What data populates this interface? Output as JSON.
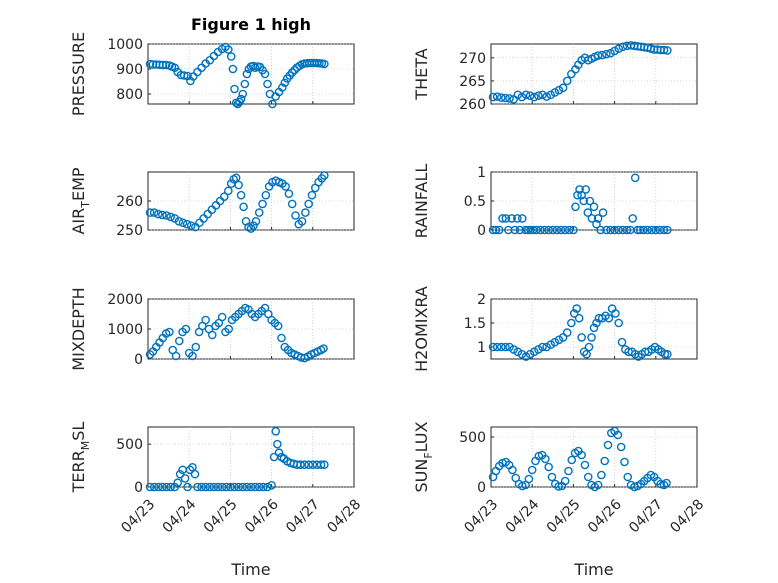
{
  "figure": {
    "title": "Figure 1 high",
    "xlabel": "Time"
  },
  "colors": {
    "marker": "#0072BD",
    "axis": "#262626",
    "grid": "#b8b8b8"
  },
  "chart_data": [
    {
      "type": "scatter",
      "ylabel": "PRESSURE",
      "ylim": [
        760,
        1000
      ],
      "yticks": [
        "800",
        "900",
        "1000"
      ],
      "xticks": [],
      "grid": true,
      "x": [
        0.05,
        0.12,
        0.2,
        0.28,
        0.36,
        0.44,
        0.52,
        0.58,
        0.65,
        0.72,
        0.8,
        0.88,
        0.96,
        1.03,
        1.1,
        1.2,
        1.3,
        1.4,
        1.5,
        1.6,
        1.7,
        1.8,
        1.88,
        1.95,
        2.02,
        2.06,
        2.1,
        2.14,
        2.18,
        2.22,
        2.26,
        2.3,
        2.35,
        2.4,
        2.45,
        2.5,
        2.55,
        2.6,
        2.66,
        2.72,
        2.78,
        2.84,
        2.9,
        2.96,
        3.02,
        3.1,
        3.18,
        3.26,
        3.32,
        3.38,
        3.44,
        3.5,
        3.56,
        3.62,
        3.68,
        3.74,
        3.8,
        3.86,
        3.92,
        3.98,
        4.04,
        4.1,
        4.16,
        4.22,
        4.28
      ],
      "y": [
        920,
        918,
        918,
        917,
        916,
        916,
        914,
        910,
        905,
        888,
        876,
        874,
        872,
        852,
        870,
        888,
        905,
        922,
        935,
        952,
        968,
        980,
        988,
        978,
        950,
        900,
        820,
        765,
        760,
        768,
        780,
        800,
        840,
        880,
        900,
        910,
        912,
        905,
        910,
        908,
        895,
        880,
        840,
        800,
        760,
        790,
        808,
        826,
        845,
        862,
        874,
        886,
        896,
        906,
        913,
        919,
        922,
        923,
        924,
        924,
        924,
        924,
        923,
        922,
        920
      ]
    },
    {
      "type": "scatter",
      "ylabel": "THETA",
      "ylim": [
        260,
        273
      ],
      "yticks": [
        "260",
        "265",
        "270"
      ],
      "xticks": [],
      "grid": true,
      "x": [
        0.05,
        0.15,
        0.25,
        0.35,
        0.45,
        0.55,
        0.65,
        0.75,
        0.85,
        0.95,
        1.05,
        1.15,
        1.25,
        1.35,
        1.45,
        1.55,
        1.65,
        1.75,
        1.85,
        1.95,
        2.05,
        2.12,
        2.2,
        2.28,
        2.36,
        2.44,
        2.52,
        2.6,
        2.7,
        2.8,
        2.9,
        3.0,
        3.1,
        3.2,
        3.3,
        3.4,
        3.48,
        3.56,
        3.64,
        3.72,
        3.8,
        3.88,
        3.96,
        4.04,
        4.12,
        4.2,
        4.28
      ],
      "y": [
        261.5,
        261.6,
        261.4,
        261.3,
        261.2,
        261.0,
        262.0,
        261.5,
        262.0,
        261.8,
        261.5,
        261.8,
        262.0,
        261.6,
        262.0,
        262.5,
        263.0,
        263.5,
        265.0,
        266.5,
        267.5,
        268.5,
        269.5,
        270.0,
        269.5,
        269.8,
        270.2,
        270.5,
        270.6,
        270.8,
        271.0,
        271.5,
        272.0,
        272.4,
        272.6,
        272.7,
        272.6,
        272.5,
        272.4,
        272.3,
        272.2,
        272.0,
        271.8,
        271.8,
        271.7,
        271.7,
        271.6
      ]
    },
    {
      "type": "scatter",
      "ylabel": "AIR",
      "ylabel_sub": "T",
      "ylabel_rest": "EMP",
      "ylim": [
        250,
        270
      ],
      "yticks": [
        "250",
        "260"
      ],
      "xticks": [],
      "grid": true,
      "x": [
        0.05,
        0.15,
        0.25,
        0.35,
        0.45,
        0.55,
        0.65,
        0.75,
        0.85,
        0.95,
        1.05,
        1.15,
        1.25,
        1.35,
        1.45,
        1.55,
        1.65,
        1.75,
        1.85,
        1.95,
        2.02,
        2.08,
        2.14,
        2.2,
        2.26,
        2.32,
        2.38,
        2.44,
        2.5,
        2.56,
        2.62,
        2.7,
        2.78,
        2.86,
        2.94,
        3.02,
        3.1,
        3.18,
        3.26,
        3.34,
        3.42,
        3.5,
        3.58,
        3.66,
        3.74,
        3.82,
        3.9,
        3.98,
        4.06,
        4.14,
        4.22,
        4.28
      ],
      "y": [
        256.0,
        256.0,
        255.5,
        255.2,
        255.0,
        254.5,
        254.0,
        253.0,
        252.5,
        252.0,
        251.5,
        251.0,
        252.5,
        254.0,
        255.5,
        257.0,
        258.5,
        260.0,
        261.5,
        263.5,
        266.0,
        267.5,
        268.0,
        265.5,
        262.0,
        258.0,
        253.0,
        251.0,
        250.5,
        251.5,
        253.0,
        256.0,
        259.0,
        262.0,
        265.0,
        266.5,
        267.0,
        266.5,
        266.0,
        265.0,
        262.5,
        259.0,
        255.0,
        252.0,
        253.0,
        256.0,
        259.0,
        262.0,
        264.5,
        266.5,
        267.8,
        268.8
      ]
    },
    {
      "type": "scatter",
      "ylabel": "RAINFALL",
      "ylim": [
        0,
        1
      ],
      "yticks": [
        "0",
        "0.5",
        "1"
      ],
      "xticks": [],
      "grid": true,
      "x": [
        0.05,
        0.12,
        0.2,
        0.28,
        0.36,
        0.42,
        0.5,
        0.58,
        0.64,
        0.7,
        0.76,
        0.84,
        0.9,
        0.96,
        1.02,
        1.1,
        1.2,
        1.3,
        1.4,
        1.5,
        1.6,
        1.7,
        1.8,
        1.9,
        2.0,
        2.05,
        2.1,
        2.15,
        2.2,
        2.25,
        2.3,
        2.35,
        2.4,
        2.45,
        2.5,
        2.56,
        2.6,
        2.66,
        2.72,
        2.8,
        2.9,
        3.0,
        3.1,
        3.2,
        3.3,
        3.38,
        3.44,
        3.5,
        3.56,
        3.62,
        3.7,
        3.8,
        3.9,
        4.0,
        4.1,
        4.2,
        4.28
      ],
      "y": [
        0,
        0,
        0,
        0.2,
        0.2,
        0,
        0.2,
        0,
        0.2,
        0,
        0.2,
        0,
        0,
        0,
        0,
        0,
        0,
        0,
        0,
        0,
        0,
        0,
        0,
        0,
        0,
        0.4,
        0.6,
        0.7,
        0.6,
        0.5,
        0.7,
        0.3,
        0.5,
        0.2,
        0.4,
        0.1,
        0.2,
        0,
        0.3,
        0,
        0,
        0,
        0,
        0,
        0,
        0,
        0.2,
        0.9,
        0,
        0,
        0,
        0,
        0,
        0,
        0,
        0,
        0
      ]
    },
    {
      "type": "scatter",
      "ylabel": "MIXDEPTH",
      "ylim": [
        0,
        2000
      ],
      "yticks": [
        "0",
        "1000",
        "2000"
      ],
      "xticks": [],
      "grid": true,
      "x": [
        0.05,
        0.12,
        0.2,
        0.28,
        0.36,
        0.44,
        0.52,
        0.6,
        0.68,
        0.76,
        0.84,
        0.92,
        1.0,
        1.08,
        1.16,
        1.24,
        1.32,
        1.4,
        1.48,
        1.56,
        1.64,
        1.72,
        1.8,
        1.88,
        1.96,
        2.04,
        2.12,
        2.2,
        2.28,
        2.36,
        2.44,
        2.52,
        2.6,
        2.68,
        2.76,
        2.84,
        2.92,
        3.0,
        3.08,
        3.16,
        3.24,
        3.32,
        3.4,
        3.48,
        3.56,
        3.64,
        3.72,
        3.8,
        3.88,
        3.96,
        4.04,
        4.12,
        4.2,
        4.26
      ],
      "y": [
        150,
        250,
        400,
        550,
        700,
        850,
        900,
        300,
        100,
        600,
        900,
        1000,
        200,
        100,
        400,
        900,
        1100,
        1300,
        1000,
        800,
        1100,
        1200,
        1400,
        900,
        1000,
        1300,
        1400,
        1500,
        1600,
        1700,
        1650,
        1500,
        1400,
        1500,
        1600,
        1700,
        1500,
        1300,
        1200,
        1100,
        700,
        400,
        300,
        200,
        150,
        100,
        50,
        30,
        80,
        150,
        200,
        250,
        300,
        350
      ]
    },
    {
      "type": "scatter",
      "ylabel": "H2OMIXRA",
      "ylim": [
        0.75,
        2
      ],
      "yticks": [
        "1",
        "1.5",
        "2"
      ],
      "xticks": [],
      "grid": true,
      "x": [
        0.05,
        0.15,
        0.25,
        0.35,
        0.45,
        0.55,
        0.65,
        0.75,
        0.85,
        0.95,
        1.05,
        1.15,
        1.25,
        1.35,
        1.45,
        1.55,
        1.65,
        1.75,
        1.85,
        1.95,
        2.02,
        2.08,
        2.14,
        2.2,
        2.26,
        2.32,
        2.38,
        2.44,
        2.5,
        2.56,
        2.62,
        2.7,
        2.78,
        2.86,
        2.94,
        3.02,
        3.1,
        3.18,
        3.26,
        3.34,
        3.42,
        3.5,
        3.58,
        3.66,
        3.74,
        3.82,
        3.9,
        3.98,
        4.06,
        4.14,
        4.22,
        4.28
      ],
      "y": [
        1.0,
        1.0,
        1.0,
        1.0,
        1.0,
        0.95,
        0.9,
        0.85,
        0.8,
        0.85,
        0.9,
        0.95,
        1.0,
        1.0,
        1.05,
        1.1,
        1.15,
        1.2,
        1.3,
        1.5,
        1.7,
        1.8,
        1.6,
        1.2,
        0.9,
        0.85,
        1.0,
        1.2,
        1.4,
        1.5,
        1.6,
        1.6,
        1.65,
        1.6,
        1.8,
        1.7,
        1.5,
        1.1,
        0.95,
        0.9,
        0.9,
        0.85,
        0.8,
        0.85,
        0.9,
        0.9,
        0.95,
        1.0,
        0.95,
        0.9,
        0.85,
        0.85
      ]
    },
    {
      "type": "scatter",
      "ylabel": "TERR",
      "ylabel_sub": "M",
      "ylabel_rest": "SL",
      "ylim": [
        0,
        700
      ],
      "yticks": [
        "0",
        "500"
      ],
      "xticks": [
        "04/23",
        "04/24",
        "04/25",
        "04/26",
        "04/27",
        "04/28"
      ],
      "grid": true,
      "x": [
        0.05,
        0.15,
        0.25,
        0.35,
        0.45,
        0.55,
        0.65,
        0.72,
        0.78,
        0.84,
        0.9,
        0.96,
        1.02,
        1.08,
        1.14,
        1.2,
        1.3,
        1.4,
        1.5,
        1.6,
        1.7,
        1.8,
        1.9,
        2.0,
        2.1,
        2.2,
        2.3,
        2.4,
        2.5,
        2.6,
        2.7,
        2.8,
        2.9,
        3.0,
        3.06,
        3.1,
        3.14,
        3.18,
        3.24,
        3.3,
        3.38,
        3.46,
        3.54,
        3.62,
        3.7,
        3.8,
        3.9,
        4.0,
        4.1,
        4.2,
        4.28
      ],
      "y": [
        0,
        0,
        0,
        0,
        0,
        0,
        0,
        50,
        150,
        200,
        100,
        0,
        200,
        230,
        150,
        0,
        0,
        0,
        0,
        0,
        0,
        0,
        0,
        0,
        0,
        0,
        0,
        0,
        0,
        0,
        0,
        0,
        0,
        20,
        350,
        650,
        500,
        400,
        350,
        330,
        300,
        280,
        270,
        260,
        260,
        260,
        260,
        260,
        260,
        260,
        260
      ]
    },
    {
      "type": "scatter",
      "ylabel": "SUN",
      "ylabel_sub": "F",
      "ylabel_rest": "LUX",
      "ylim": [
        0,
        600
      ],
      "yticks": [
        "0",
        "500"
      ],
      "xticks": [
        "04/23",
        "04/24",
        "04/25",
        "04/26",
        "04/27",
        "04/28"
      ],
      "grid": true,
      "x": [
        0.05,
        0.12,
        0.2,
        0.28,
        0.36,
        0.44,
        0.52,
        0.6,
        0.68,
        0.76,
        0.84,
        0.92,
        1.0,
        1.08,
        1.16,
        1.24,
        1.32,
        1.4,
        1.48,
        1.56,
        1.64,
        1.72,
        1.8,
        1.88,
        1.96,
        2.04,
        2.12,
        2.2,
        2.28,
        2.36,
        2.44,
        2.52,
        2.6,
        2.68,
        2.76,
        2.84,
        2.92,
        3.0,
        3.08,
        3.16,
        3.24,
        3.32,
        3.4,
        3.48,
        3.56,
        3.64,
        3.72,
        3.8,
        3.88,
        3.96,
        4.04,
        4.12,
        4.2,
        4.26
      ],
      "y": [
        100,
        160,
        210,
        240,
        250,
        220,
        170,
        90,
        30,
        10,
        20,
        80,
        170,
        260,
        310,
        320,
        280,
        200,
        100,
        30,
        5,
        10,
        60,
        160,
        270,
        340,
        360,
        320,
        220,
        100,
        20,
        0,
        20,
        120,
        260,
        420,
        540,
        560,
        520,
        400,
        250,
        100,
        20,
        0,
        10,
        30,
        60,
        90,
        120,
        100,
        60,
        30,
        20,
        40
      ]
    }
  ]
}
